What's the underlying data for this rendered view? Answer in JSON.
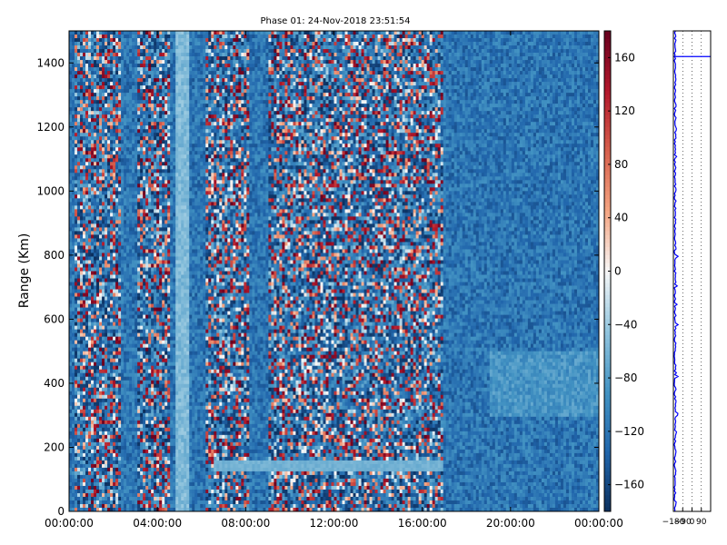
{
  "chart_data": [
    {
      "type": "heatmap",
      "title": "Phase 01: 24-Nov-2018 23:51:54",
      "xlabel": "",
      "ylabel": "Range (Km)",
      "x_tick_labels": [
        "00:00:00",
        "04:00:00",
        "08:00:00",
        "12:00:00",
        "16:00:00",
        "20:00:00",
        "00:00:00"
      ],
      "x_range_hours": [
        0,
        24
      ],
      "y_ticks": [
        0,
        200,
        400,
        600,
        800,
        1000,
        1200,
        1400
      ],
      "ylim": [
        0,
        1500
      ],
      "colorbar": {
        "ticks": [
          160,
          120,
          80,
          40,
          0,
          -40,
          -80,
          -120,
          -160
        ],
        "vmin": -180,
        "vmax": 180,
        "colormap": "RdBu_r",
        "colors": [
          "#0b2f5e",
          "#2166ac",
          "#4393c3",
          "#92c5de",
          "#f7f7f7",
          "#f4a582",
          "#d6604d",
          "#b2182b",
          "#67001f"
        ]
      },
      "noisy_bands_hours": [
        [
          0.2,
          2.3
        ],
        [
          3.1,
          4.6
        ],
        [
          6.2,
          8.2
        ],
        [
          9.0,
          16.9
        ]
      ],
      "bright_band_hours": [
        4.8,
        5.5
      ],
      "horizontal_echo": {
        "range_km": 142,
        "hours": [
          6.5,
          17.0
        ]
      },
      "grid": false
    },
    {
      "type": "line",
      "x_tick_labels": [
        "−180",
        "−90",
        "0",
        "90"
      ],
      "xlim": [
        -180,
        180
      ],
      "ylim": [
        0,
        1500
      ],
      "marker_line_range_km": 1420,
      "line_color": "#0000ff",
      "grid": "dotted-vertical"
    }
  ]
}
